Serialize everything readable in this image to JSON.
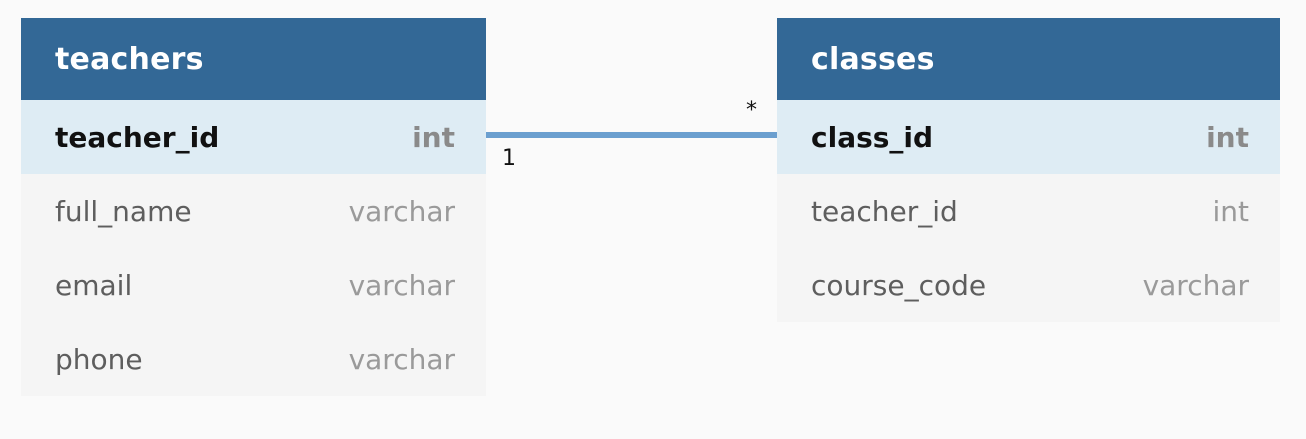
{
  "tables": {
    "teachers": {
      "title": "teachers",
      "fields": [
        {
          "name": "teacher_id",
          "type": "int"
        },
        {
          "name": "full_name",
          "type": "varchar"
        },
        {
          "name": "email",
          "type": "varchar"
        },
        {
          "name": "phone",
          "type": "varchar"
        }
      ]
    },
    "classes": {
      "title": "classes",
      "fields": [
        {
          "name": "class_id",
          "type": "int"
        },
        {
          "name": "teacher_id",
          "type": "int"
        },
        {
          "name": "course_code",
          "type": "varchar"
        }
      ]
    }
  },
  "relation": {
    "from_cardinality": "1",
    "to_cardinality": "*"
  },
  "colors": {
    "header": "#336896",
    "primary_key_row": "#deecf4",
    "relation_line": "#6b9fcf"
  }
}
